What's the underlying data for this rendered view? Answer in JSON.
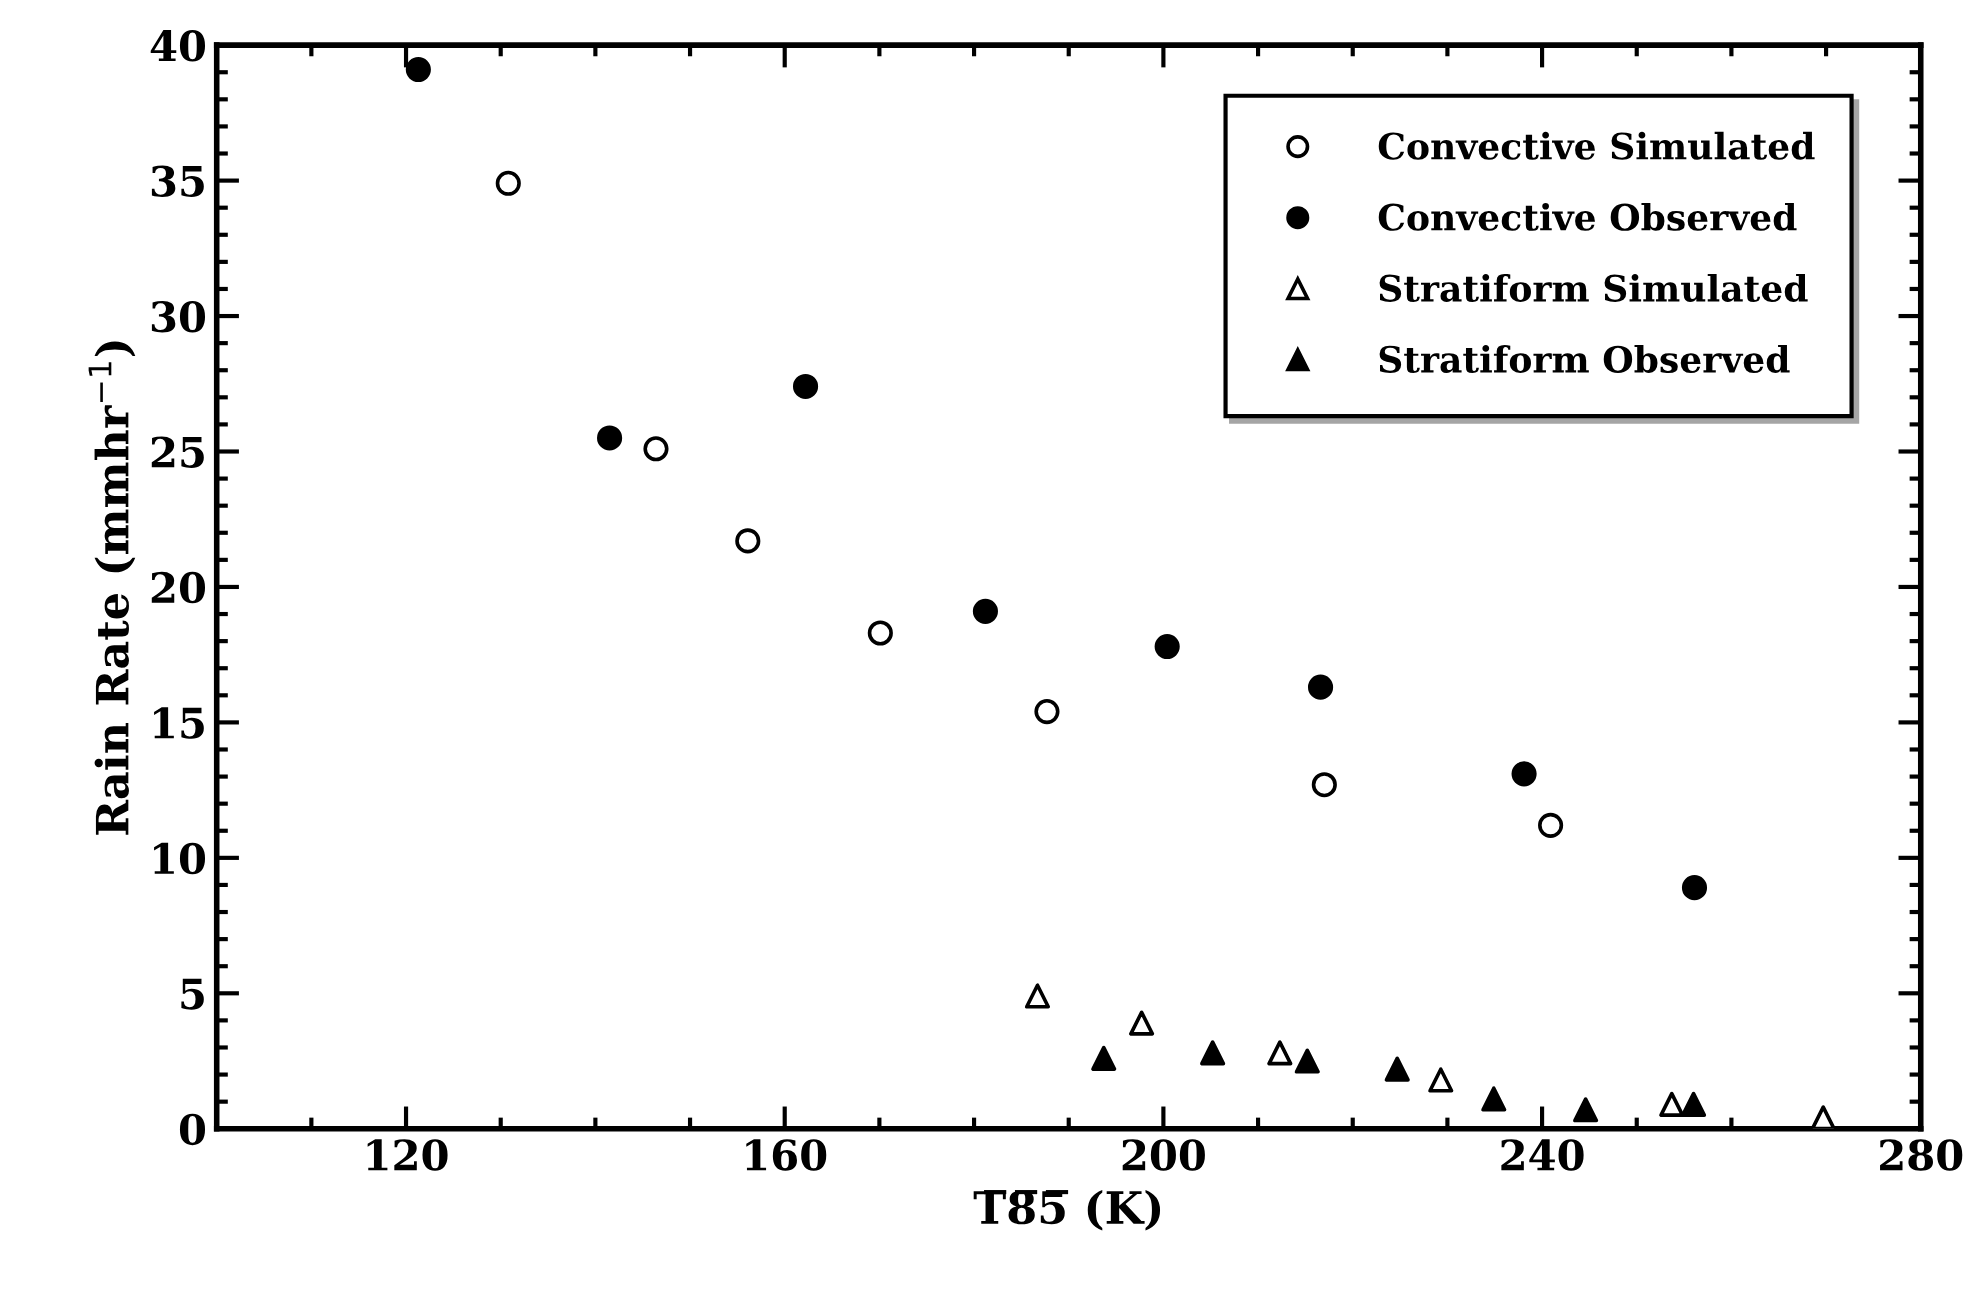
{
  "chart_data": {
    "type": "scatter",
    "xlabel": "T̅8̅5̅ (K)",
    "ylabel": "Rain Rate (mmhr$^{−1}$)",
    "xlim": [
      100,
      280
    ],
    "ylim": [
      0,
      40
    ],
    "xticks": [
      {
        "value": 100,
        "label": null
      },
      {
        "value": 110,
        "label": null
      },
      120,
      {
        "value": 130,
        "label": null
      },
      {
        "value": 140,
        "label": null
      },
      {
        "value": 150,
        "label": null
      },
      160,
      {
        "value": 170,
        "label": null
      },
      {
        "value": 180,
        "label": null
      },
      {
        "value": 190,
        "label": null
      },
      200,
      {
        "value": 210,
        "label": null
      },
      {
        "value": 220,
        "label": null
      },
      {
        "value": 230,
        "label": null
      },
      240,
      {
        "value": 250,
        "label": null
      },
      {
        "value": 260,
        "label": null
      },
      {
        "value": 270,
        "label": null
      },
      280
    ],
    "yticks": [
      0,
      {
        "value": 1,
        "label": null
      },
      {
        "value": 2,
        "label": null
      },
      {
        "value": 3,
        "label": null
      },
      {
        "value": 4,
        "label": null
      },
      5,
      {
        "value": 6,
        "label": null
      },
      {
        "value": 7,
        "label": null
      },
      {
        "value": 8,
        "label": null
      },
      {
        "value": 9,
        "label": null
      },
      10,
      {
        "value": 11,
        "label": null
      },
      {
        "value": 12,
        "label": null
      },
      {
        "value": 13,
        "label": null
      },
      {
        "value": 14,
        "label": null
      },
      15,
      {
        "value": 16,
        "label": null
      },
      {
        "value": 17,
        "label": null
      },
      {
        "value": 18,
        "label": null
      },
      {
        "value": 19,
        "label": null
      },
      20,
      {
        "value": 21,
        "label": null
      },
      {
        "value": 22,
        "label": null
      },
      {
        "value": 23,
        "label": null
      },
      {
        "value": 24,
        "label": null
      },
      25,
      {
        "value": 26,
        "label": null
      },
      {
        "value": 27,
        "label": null
      },
      {
        "value": 28,
        "label": null
      },
      {
        "value": 29,
        "label": null
      },
      30,
      {
        "value": 31,
        "label": null
      },
      {
        "value": 32,
        "label": null
      },
      {
        "value": 33,
        "label": null
      },
      {
        "value": 34,
        "label": null
      },
      35,
      {
        "value": 36,
        "label": null
      },
      {
        "value": 37,
        "label": null
      },
      {
        "value": 38,
        "label": null
      },
      {
        "value": 39,
        "label": null
      },
      40
    ],
    "grid": false,
    "legend": "top right",
    "series": [
      {
        "name": "Convective Simulated",
        "color": "#ffffff",
        "marker": "circle",
        "x": [
          130.8,
          146.4,
          156.1,
          170.1,
          187.7,
          217.0,
          240.9
        ],
        "values": [
          34.9,
          25.1,
          21.7,
          18.3,
          15.4,
          12.7,
          11.2
        ]
      },
      {
        "name": "Convective Observed",
        "color": "#000000",
        "marker": "circle",
        "x": [
          121.3,
          141.5,
          162.2,
          181.2,
          200.4,
          216.6,
          238.1,
          256.1
        ],
        "values": [
          39.1,
          25.5,
          27.4,
          19.1,
          17.8,
          16.3,
          13.1,
          8.9
        ]
      },
      {
        "name": "Stratiform Simulated",
        "color": "#ffffff",
        "marker": "triangle",
        "x": [
          186.7,
          197.7,
          212.3,
          229.3,
          253.7,
          269.7
        ],
        "values": [
          4.9,
          3.9,
          2.8,
          1.8,
          0.9,
          0.4
        ]
      },
      {
        "name": "Stratiform Observed",
        "color": "#000000",
        "marker": "triangle",
        "x": [
          193.7,
          205.2,
          215.2,
          224.7,
          234.9,
          244.6,
          256.0
        ],
        "values": [
          2.6,
          2.8,
          2.5,
          2.2,
          1.1,
          0.7,
          0.9
        ]
      }
    ]
  }
}
